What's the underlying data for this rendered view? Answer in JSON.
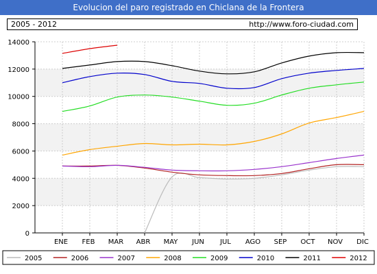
{
  "header": {
    "title": "Evolucion del paro registrado en Chiclana de la Frontera",
    "period": "2005 - 2012",
    "website": "http://www.foro-ciudad.com"
  },
  "chart_data": {
    "type": "line",
    "categories": [
      "ENE",
      "FEB",
      "MAR",
      "ABR",
      "MAY",
      "JUN",
      "JUL",
      "AGO",
      "SEP",
      "OCT",
      "NOV",
      "DIC"
    ],
    "y_ticks": [
      "0",
      "2000",
      "4000",
      "6000",
      "8000",
      "10000",
      "12000",
      "14000"
    ],
    "ylim": [
      0,
      14000
    ],
    "grid": true,
    "legend_position": "bottom",
    "series": [
      {
        "name": "2005",
        "color": "#bbbbbb",
        "values": [
          null,
          null,
          null,
          0,
          4100,
          4050,
          3950,
          4000,
          4250,
          4600,
          4850,
          4850
        ]
      },
      {
        "name": "2006",
        "color": "#b22222",
        "values": [
          4900,
          4900,
          4950,
          4750,
          4450,
          4250,
          4200,
          4200,
          4350,
          4700,
          5000,
          5000
        ]
      },
      {
        "name": "2007",
        "color": "#9932cc",
        "values": [
          4900,
          4850,
          4950,
          4800,
          4600,
          4550,
          4550,
          4650,
          4850,
          5150,
          5450,
          5700
        ]
      },
      {
        "name": "2008",
        "color": "#ffa500",
        "values": [
          5700,
          6100,
          6350,
          6550,
          6450,
          6500,
          6450,
          6700,
          7250,
          8050,
          8450,
          8900
        ]
      },
      {
        "name": "2009",
        "color": "#22dd22",
        "values": [
          8900,
          9300,
          9950,
          10100,
          9950,
          9650,
          9350,
          9500,
          10100,
          10600,
          10850,
          11050
        ]
      },
      {
        "name": "2010",
        "color": "#0000cc",
        "values": [
          11000,
          11450,
          11700,
          11600,
          11100,
          10950,
          10600,
          10650,
          11300,
          11700,
          11900,
          12050
        ]
      },
      {
        "name": "2011",
        "color": "#000000",
        "values": [
          12050,
          12300,
          12550,
          12550,
          12250,
          11850,
          11650,
          11800,
          12450,
          12950,
          13200,
          13200
        ]
      },
      {
        "name": "2012",
        "color": "#dd0000",
        "values": [
          13150,
          13500,
          13750,
          null,
          null,
          null,
          null,
          null,
          null,
          null,
          null,
          null
        ]
      }
    ]
  }
}
